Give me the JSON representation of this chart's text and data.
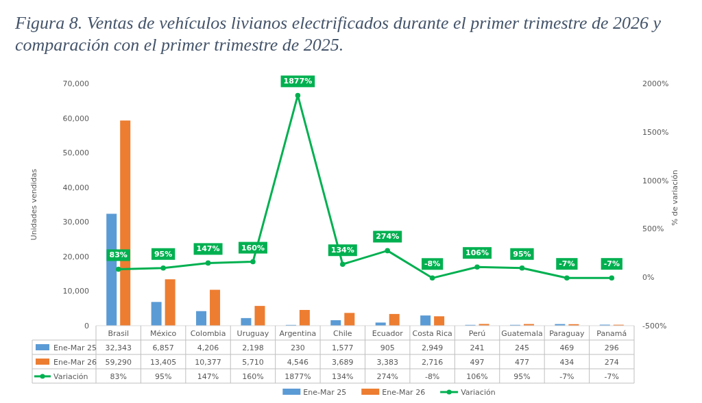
{
  "chart_data": {
    "type": "bar",
    "title": "Figura 8. Ventas de vehículos livianos electrificados durante el primer trimestre de 2026 y comparación con el primer trimestre de 2025.",
    "ylabel": "Unidades vendidas",
    "y2label": "% de variación",
    "categories": [
      "Brasil",
      "México",
      "Colombia",
      "Uruguay",
      "Argentina",
      "Chile",
      "Ecuador",
      "Costa Rica",
      "Perú",
      "Guatemala",
      "Paraguay",
      "Panamá"
    ],
    "series": [
      {
        "name": "Ene-Mar 25",
        "color": "#5b9bd5",
        "values": [
          32343,
          6857,
          4206,
          2198,
          230,
          1577,
          905,
          2949,
          241,
          245,
          469,
          296
        ],
        "value_labels": [
          "32,343",
          "6,857",
          "4,206",
          "2,198",
          "230",
          "1,577",
          "905",
          "2,949",
          "241",
          "245",
          "469",
          "296"
        ]
      },
      {
        "name": "Ene-Mar 26",
        "color": "#ed7d31",
        "values": [
          59290,
          13405,
          10377,
          5710,
          4546,
          3689,
          3383,
          2716,
          497,
          477,
          434,
          274
        ],
        "value_labels": [
          "59,290",
          "13,405",
          "10,377",
          "5,710",
          "4,546",
          "3,689",
          "3,383",
          "2,716",
          "497",
          "477",
          "434",
          "274"
        ]
      },
      {
        "name": "Variación",
        "type": "line",
        "axis": "y2",
        "color": "#00b050",
        "marker": "circle",
        "values": [
          83,
          95,
          147,
          160,
          1877,
          134,
          274,
          -8,
          106,
          95,
          -7,
          -7
        ],
        "value_labels": [
          "83%",
          "95%",
          "147%",
          "160%",
          "1877%",
          "134%",
          "274%",
          "-8%",
          "106%",
          "95%",
          "-7%",
          "-7%"
        ]
      }
    ],
    "ylim": [
      0,
      70000
    ],
    "yticks": [
      0,
      {
        "value": 10000,
        "label": "10,000"
      },
      {
        "value": 20000,
        "label": "20,000"
      },
      {
        "value": 30000,
        "label": "30,000"
      },
      {
        "value": 40000,
        "label": "40,000"
      },
      {
        "value": 50000,
        "label": "50,000"
      },
      {
        "value": 60000,
        "label": "60,000"
      },
      {
        "value": 70000,
        "label": "70,000"
      }
    ],
    "y2lim": [
      -500,
      2000
    ],
    "y2ticks": [
      {
        "value": -500,
        "label": "-500%"
      },
      {
        "value": 0,
        "label": "0%"
      },
      {
        "value": 500,
        "label": "500%"
      },
      {
        "value": 1000,
        "label": "1000%"
      },
      {
        "value": 1500,
        "label": "1500%"
      },
      {
        "value": 2000,
        "label": "2000%"
      }
    ],
    "grid": false,
    "legend": "bottom"
  }
}
